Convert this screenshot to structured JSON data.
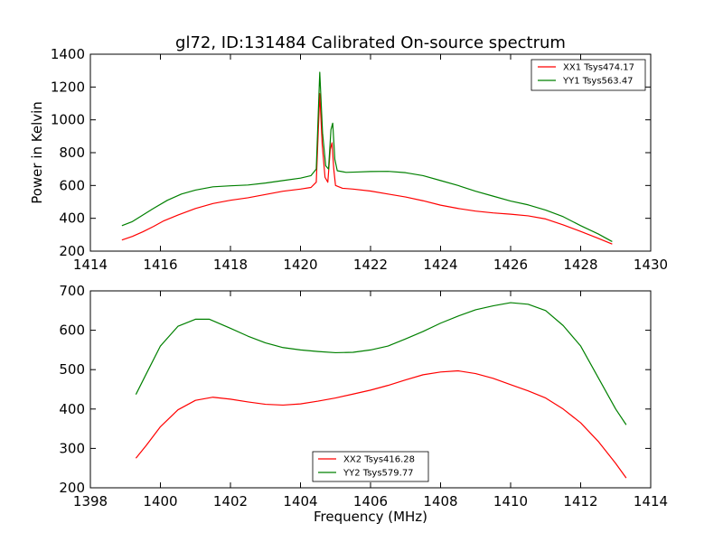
{
  "chart_data": [
    {
      "type": "line",
      "title": "gl72, ID:131484 Calibrated On-source spectrum",
      "xlabel": "",
      "ylabel": "Power in Kelvin",
      "xlim": [
        1414,
        1430
      ],
      "ylim": [
        200,
        1400
      ],
      "xticks": [
        "1414",
        "1416",
        "1418",
        "1420",
        "1422",
        "1424",
        "1426",
        "1428",
        "1430"
      ],
      "yticks": [
        "200",
        "400",
        "600",
        "800",
        "1000",
        "1200",
        "1400"
      ],
      "grid": false,
      "legend_position": "top-right",
      "series": [
        {
          "name": "XX1 Tsys474.17",
          "color": "#ff0000",
          "points": [
            [
              1414.9,
              268
            ],
            [
              1415.2,
              290
            ],
            [
              1415.5,
              318
            ],
            [
              1415.8,
              350
            ],
            [
              1416.1,
              385
            ],
            [
              1416.5,
              420
            ],
            [
              1417.0,
              460
            ],
            [
              1417.5,
              490
            ],
            [
              1418.0,
              510
            ],
            [
              1418.5,
              525
            ],
            [
              1419.0,
              545
            ],
            [
              1419.5,
              565
            ],
            [
              1420.0,
              578
            ],
            [
              1420.3,
              588
            ],
            [
              1420.45,
              620
            ],
            [
              1420.55,
              1160
            ],
            [
              1420.62,
              850
            ],
            [
              1420.7,
              650
            ],
            [
              1420.78,
              620
            ],
            [
              1420.85,
              820
            ],
            [
              1420.9,
              860
            ],
            [
              1420.95,
              700
            ],
            [
              1421.0,
              600
            ],
            [
              1421.2,
              583
            ],
            [
              1421.5,
              578
            ],
            [
              1422.0,
              566
            ],
            [
              1422.5,
              548
            ],
            [
              1423.0,
              530
            ],
            [
              1423.5,
              507
            ],
            [
              1424.0,
              480
            ],
            [
              1424.5,
              460
            ],
            [
              1425.0,
              444
            ],
            [
              1425.5,
              433
            ],
            [
              1426.0,
              425
            ],
            [
              1426.5,
              415
            ],
            [
              1427.0,
              396
            ],
            [
              1427.5,
              360
            ],
            [
              1428.0,
              320
            ],
            [
              1428.5,
              278
            ],
            [
              1428.9,
              243
            ]
          ]
        },
        {
          "name": "YY1 Tsys563.47",
          "color": "#008000",
          "points": [
            [
              1414.9,
              355
            ],
            [
              1415.2,
              380
            ],
            [
              1415.5,
              420
            ],
            [
              1415.8,
              460
            ],
            [
              1416.2,
              510
            ],
            [
              1416.6,
              548
            ],
            [
              1417.0,
              572
            ],
            [
              1417.5,
              592
            ],
            [
              1418.0,
              598
            ],
            [
              1418.5,
              603
            ],
            [
              1419.0,
              615
            ],
            [
              1419.5,
              630
            ],
            [
              1420.0,
              645
            ],
            [
              1420.3,
              660
            ],
            [
              1420.45,
              700
            ],
            [
              1420.55,
              1290
            ],
            [
              1420.63,
              920
            ],
            [
              1420.72,
              720
            ],
            [
              1420.8,
              700
            ],
            [
              1420.87,
              940
            ],
            [
              1420.92,
              980
            ],
            [
              1420.98,
              760
            ],
            [
              1421.05,
              690
            ],
            [
              1421.3,
              680
            ],
            [
              1421.6,
              682
            ],
            [
              1422.0,
              685
            ],
            [
              1422.5,
              686
            ],
            [
              1423.0,
              678
            ],
            [
              1423.5,
              660
            ],
            [
              1424.0,
              630
            ],
            [
              1424.5,
              600
            ],
            [
              1425.0,
              565
            ],
            [
              1425.5,
              535
            ],
            [
              1426.0,
              505
            ],
            [
              1426.5,
              482
            ],
            [
              1427.0,
              450
            ],
            [
              1427.5,
              410
            ],
            [
              1428.0,
              355
            ],
            [
              1428.5,
              305
            ],
            [
              1428.9,
              258
            ]
          ]
        }
      ]
    },
    {
      "type": "line",
      "title": "",
      "xlabel": "Frequency (MHz)",
      "ylabel": "",
      "xlim": [
        1398,
        1414
      ],
      "ylim": [
        200,
        700
      ],
      "xticks": [
        "1398",
        "1400",
        "1402",
        "1404",
        "1406",
        "1408",
        "1410",
        "1412",
        "1414"
      ],
      "yticks": [
        "200",
        "300",
        "400",
        "500",
        "600",
        "700"
      ],
      "grid": false,
      "legend_position": "bottom-center",
      "series": [
        {
          "name": "XX2 Tsys416.28",
          "color": "#ff0000",
          "points": [
            [
              1399.3,
              275
            ],
            [
              1399.6,
              308
            ],
            [
              1400.0,
              355
            ],
            [
              1400.5,
              398
            ],
            [
              1401.0,
              422
            ],
            [
              1401.5,
              430
            ],
            [
              1402.0,
              425
            ],
            [
              1402.5,
              418
            ],
            [
              1403.0,
              412
            ],
            [
              1403.5,
              410
            ],
            [
              1404.0,
              413
            ],
            [
              1404.5,
              420
            ],
            [
              1405.0,
              428
            ],
            [
              1405.5,
              438
            ],
            [
              1406.0,
              448
            ],
            [
              1406.5,
              460
            ],
            [
              1407.0,
              474
            ],
            [
              1407.5,
              487
            ],
            [
              1408.0,
              494
            ],
            [
              1408.5,
              497
            ],
            [
              1409.0,
              490
            ],
            [
              1409.5,
              478
            ],
            [
              1410.0,
              462
            ],
            [
              1410.5,
              446
            ],
            [
              1411.0,
              428
            ],
            [
              1411.5,
              400
            ],
            [
              1412.0,
              365
            ],
            [
              1412.5,
              318
            ],
            [
              1413.0,
              262
            ],
            [
              1413.3,
              225
            ]
          ]
        },
        {
          "name": "YY2 Tsys579.77",
          "color": "#008000",
          "points": [
            [
              1399.3,
              437
            ],
            [
              1399.6,
              490
            ],
            [
              1400.0,
              560
            ],
            [
              1400.5,
              610
            ],
            [
              1401.0,
              628
            ],
            [
              1401.4,
              628
            ],
            [
              1402.0,
              605
            ],
            [
              1402.5,
              585
            ],
            [
              1403.0,
              568
            ],
            [
              1403.5,
              556
            ],
            [
              1404.0,
              550
            ],
            [
              1404.5,
              546
            ],
            [
              1405.0,
              543
            ],
            [
              1405.5,
              544
            ],
            [
              1406.0,
              550
            ],
            [
              1406.5,
              560
            ],
            [
              1407.0,
              578
            ],
            [
              1407.5,
              597
            ],
            [
              1408.0,
              618
            ],
            [
              1408.5,
              636
            ],
            [
              1409.0,
              652
            ],
            [
              1409.5,
              662
            ],
            [
              1410.0,
              670
            ],
            [
              1410.5,
              666
            ],
            [
              1411.0,
              650
            ],
            [
              1411.5,
              612
            ],
            [
              1412.0,
              560
            ],
            [
              1412.5,
              480
            ],
            [
              1413.0,
              400
            ],
            [
              1413.3,
              360
            ]
          ]
        }
      ]
    }
  ]
}
